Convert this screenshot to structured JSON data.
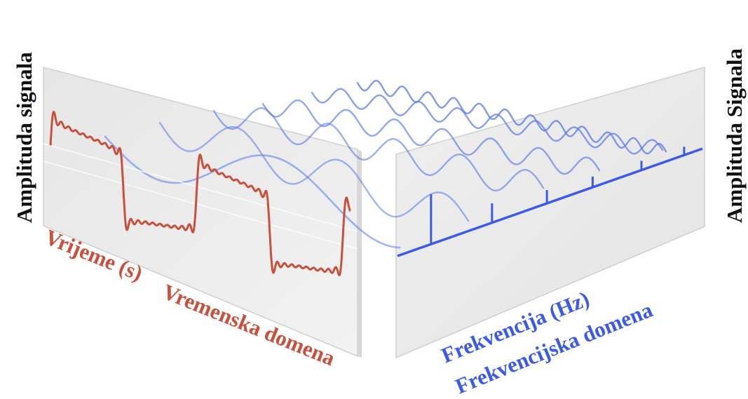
{
  "labels": {
    "left_axis": "Amplituda signala",
    "right_axis": "Amplituda Signala",
    "time_axis": "Vrijeme (s)",
    "time_domain": "Vremenska domena",
    "freq_axis": "Frekvencija (Hz)",
    "freq_domain": "Frekvencijska domena"
  },
  "colors": {
    "time_signal": "#c8503c",
    "frequency": "#3c5ae6",
    "harmonic": "#5a78e6",
    "panel_fill": "#ececec",
    "panel_edge": "#d0d0d0",
    "axis_text": "#111111"
  },
  "signal": {
    "type": "square-wave",
    "harmonics": [
      1,
      3,
      5,
      7,
      9,
      11
    ]
  }
}
